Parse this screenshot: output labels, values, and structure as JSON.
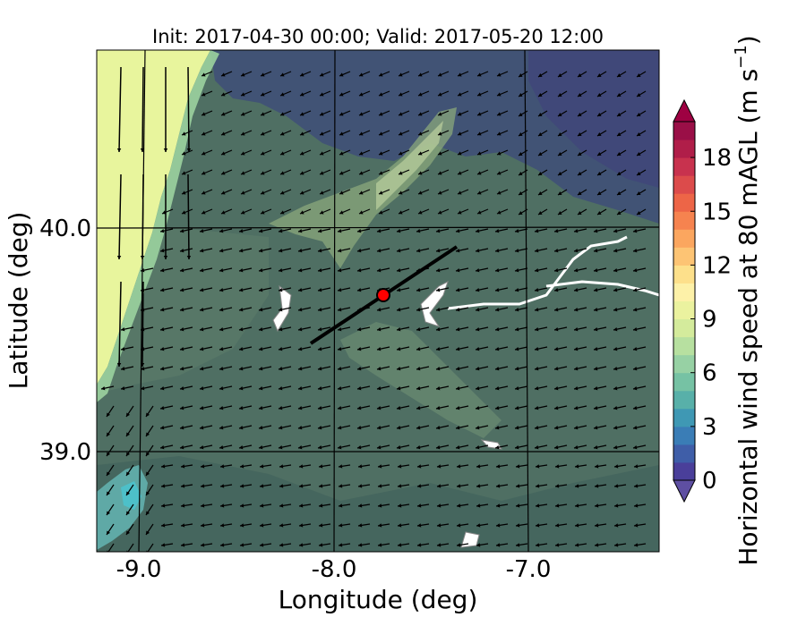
{
  "title": "Init: 2017-04-30 00:00; Valid: 2017-05-20 12:00",
  "xlabel": "Longitude (deg)",
  "ylabel": "Latitude (deg)",
  "colorbar_label": "Horizontal wind speed at 80 mAGL (m s",
  "colorbar_label_sup": "−1",
  "colorbar_label_end": ")",
  "x_ticks": [
    {
      "label": "-9.0",
      "value": -9.0
    },
    {
      "label": "-8.0",
      "value": -8.0
    },
    {
      "label": "-7.0",
      "value": -7.0
    }
  ],
  "y_ticks": [
    {
      "label": "40.0",
      "value": 40.0
    },
    {
      "label": "39.0",
      "value": 39.0
    }
  ],
  "colorbar_ticks": [
    {
      "label": "0",
      "value": 0
    },
    {
      "label": "3",
      "value": 3
    },
    {
      "label": "6",
      "value": 6
    },
    {
      "label": "9",
      "value": 9
    },
    {
      "label": "12",
      "value": 12
    },
    {
      "label": "15",
      "value": 15
    },
    {
      "label": "18",
      "value": 18
    }
  ],
  "chart_data": {
    "type": "heatmap",
    "title": "Init: 2017-04-30 00:00; Valid: 2017-05-20 12:00",
    "xlabel": "Longitude (deg)",
    "ylabel": "Latitude (deg)",
    "xlim": [
      -9.25,
      -6.35
    ],
    "ylim": [
      38.55,
      40.8
    ],
    "colorbar": {
      "label": "Horizontal wind speed at 80 mAGL (m s−1)",
      "range": [
        0,
        20
      ],
      "step": 1,
      "extend": "both",
      "colors": [
        "#4a3f9a",
        "#3f5ea8",
        "#3a7db6",
        "#3f98b4",
        "#58b0a9",
        "#76c2a4",
        "#97d1a4",
        "#b7e0a0",
        "#d4eb9c",
        "#ebf29f",
        "#fdf1a8",
        "#fde08b",
        "#fdc474",
        "#fba65f",
        "#f6834f",
        "#ed6547",
        "#dc4b4b",
        "#c8324e",
        "#b01e49",
        "#9a0f47"
      ],
      "under_color": "#5e4fa2",
      "over_color": "#9e0142"
    },
    "marker": {
      "lon": -7.75,
      "lat": 39.7,
      "color": "#ff0000"
    },
    "transect_line": {
      "start": [
        -8.12,
        39.47
      ],
      "end": [
        -7.37,
        39.92
      ]
    },
    "wind_field": "80 mAGL wind vectors; mostly weak easterly-southeasterly flow over land, strong northerly flow offshore west of -9.0"
  }
}
